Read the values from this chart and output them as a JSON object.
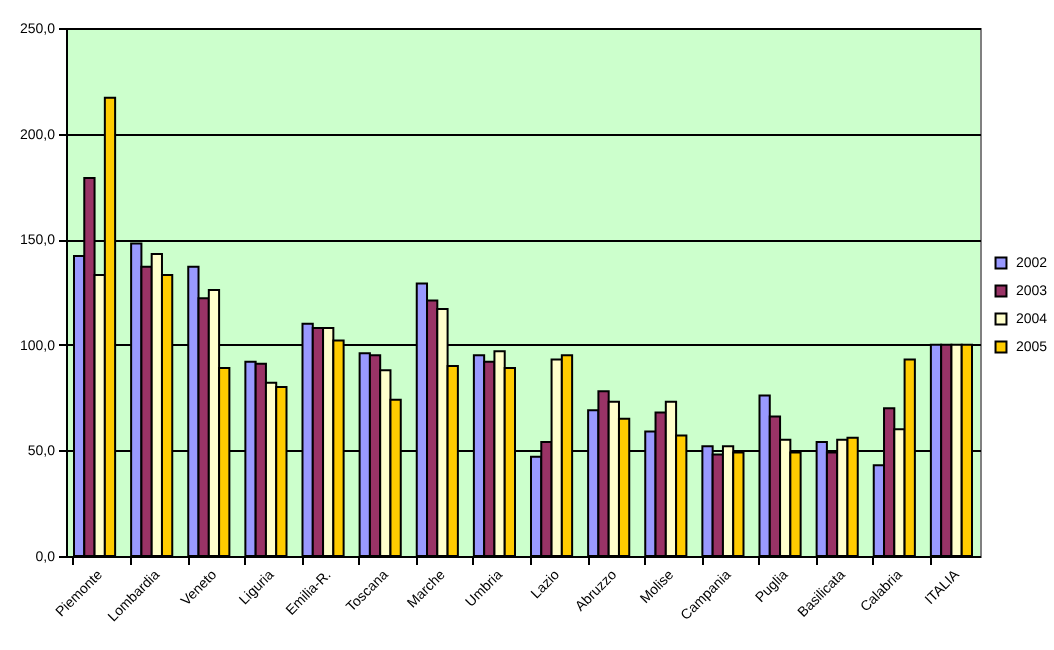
{
  "chart_data": {
    "type": "bar",
    "categories": [
      "Piemonte",
      "Lombardia",
      "Veneto",
      "Liguria",
      "Emilia-R.",
      "Toscana",
      "Marche",
      "Umbria",
      "Lazio",
      "Abruzzo",
      "Molise",
      "Campania",
      "Puglia",
      "Basilicata",
      "Calabria",
      "ITALIA"
    ],
    "series": [
      {
        "name": "2002",
        "color": "#9999ff",
        "values": [
          142,
          148,
          137,
          92,
          110,
          96,
          129,
          95,
          47,
          69,
          59,
          52,
          76,
          54,
          43,
          100
        ]
      },
      {
        "name": "2003",
        "color": "#993366",
        "values": [
          179,
          137,
          122,
          91,
          108,
          95,
          121,
          92,
          54,
          78,
          68,
          48,
          66,
          49,
          70,
          100
        ]
      },
      {
        "name": "2004",
        "color": "#ffffcc",
        "values": [
          133,
          143,
          126,
          82,
          108,
          88,
          117,
          97,
          93,
          73,
          73,
          52,
          55,
          55,
          60,
          100
        ]
      },
      {
        "name": "2005",
        "color": "#ffcc00",
        "values": [
          217,
          133,
          89,
          80,
          102,
          74,
          90,
          89,
          95,
          65,
          57,
          49,
          49,
          56,
          93,
          100
        ]
      }
    ],
    "ylim": [
      0,
      250
    ],
    "yticks": [
      {
        "value": 0,
        "label": "0,0"
      },
      {
        "value": 50,
        "label": "50,0"
      },
      {
        "value": 100,
        "label": "100,0"
      },
      {
        "value": 150,
        "label": "150,0"
      },
      {
        "value": 200,
        "label": "200,0"
      },
      {
        "value": 250,
        "label": "250,0"
      }
    ],
    "grid": "y",
    "legend": "right"
  }
}
